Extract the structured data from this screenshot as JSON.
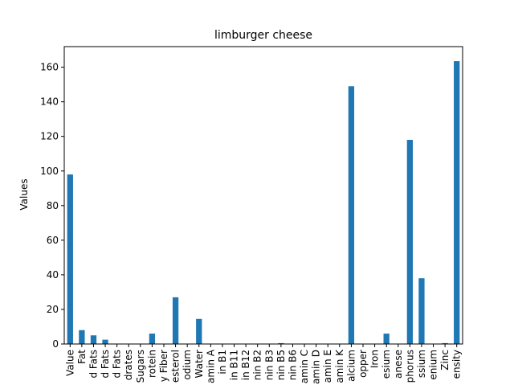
{
  "chart_data": {
    "type": "bar",
    "title": "limburger cheese",
    "xlabel": "",
    "ylabel": "Values",
    "ylim": [
      0,
      171.9
    ],
    "yticks": [
      0,
      20,
      40,
      60,
      80,
      100,
      120,
      140,
      160
    ],
    "grid": false,
    "legend": "none",
    "bar_color": "#1f77b4",
    "categories": [
      "Value",
      "Fat",
      "d Fats",
      "d Fats",
      "d Fats",
      "drates",
      "Sugars",
      "rotein",
      "y Fiber",
      "esterol",
      "odium",
      "Water",
      "amin A",
      "in B1",
      "in B11",
      "in B12",
      "nin B2",
      "nin B3",
      "nin B5",
      "nin B6",
      "amin C",
      "amin D",
      "amin E",
      "amin K",
      "alcium",
      "opper",
      "Iron",
      "esium",
      "anese",
      "phorus",
      "ssium",
      "enium",
      "Zinc",
      "ensity"
    ],
    "values": [
      98,
      8,
      5,
      2.5,
      0,
      0,
      0,
      6,
      0,
      27,
      0,
      14.5,
      0,
      0,
      0,
      0,
      0,
      0,
      0.5,
      0,
      0,
      0,
      0,
      0,
      149,
      0,
      0,
      6,
      0,
      118,
      38,
      0,
      0.5,
      163.5
    ]
  }
}
